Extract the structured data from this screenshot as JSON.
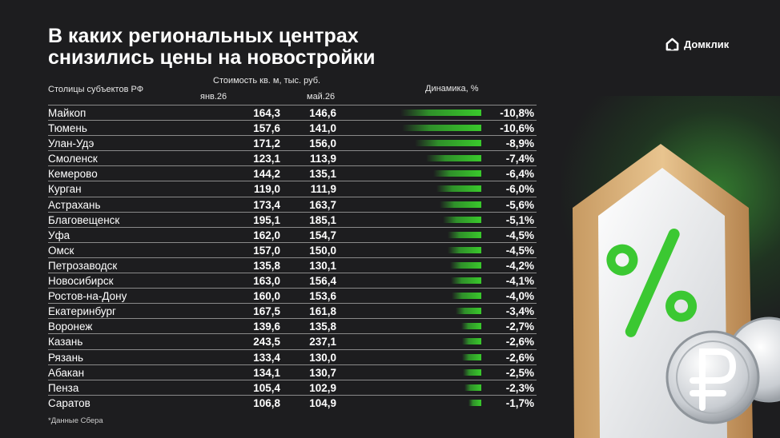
{
  "title": {
    "line1": "В каких региональных центрах",
    "line2": "снизились цены на новостройки"
  },
  "brand": {
    "name": "Домклик",
    "icon": "house-logo-icon",
    "accent": "#3bc832"
  },
  "table_headers": {
    "city": "Столицы субъектов РФ",
    "cost": "Стоимость кв. м, тыс. руб.",
    "jan": "янв.26",
    "may": "май.26",
    "dynamics": "Динамика, %"
  },
  "footnote": "*Данные Сбера",
  "chart_data": {
    "type": "table",
    "columns": [
      "Столицы субъектов РФ",
      "янв.26",
      "май.26",
      "Динамика, %"
    ],
    "rows": [
      {
        "city": "Майкоп",
        "jan": "164,3",
        "may": "146,6",
        "change_label": "-10,8%",
        "change": -10.8
      },
      {
        "city": "Тюмень",
        "jan": "157,6",
        "may": "141,0",
        "change_label": "-10,6%",
        "change": -10.6
      },
      {
        "city": "Улан-Удэ",
        "jan": "171,2",
        "may": "156,0",
        "change_label": "-8,9%",
        "change": -8.9
      },
      {
        "city": "Смоленск",
        "jan": "123,1",
        "may": "113,9",
        "change_label": "-7,4%",
        "change": -7.4
      },
      {
        "city": "Кемерово",
        "jan": "144,2",
        "may": "135,1",
        "change_label": "-6,4%",
        "change": -6.4
      },
      {
        "city": "Курган",
        "jan": "119,0",
        "may": "111,9",
        "change_label": "-6,0%",
        "change": -6.0
      },
      {
        "city": "Астрахань",
        "jan": "173,4",
        "may": "163,7",
        "change_label": "-5,6%",
        "change": -5.6
      },
      {
        "city": "Благовещенск",
        "jan": "195,1",
        "may": "185,1",
        "change_label": "-5,1%",
        "change": -5.1
      },
      {
        "city": "Уфа",
        "jan": "162,0",
        "may": "154,7",
        "change_label": "-4,5%",
        "change": -4.5
      },
      {
        "city": "Омск",
        "jan": "157,0",
        "may": "150,0",
        "change_label": "-4,5%",
        "change": -4.5
      },
      {
        "city": "Петрозаводск",
        "jan": "135,8",
        "may": "130,1",
        "change_label": "-4,2%",
        "change": -4.2
      },
      {
        "city": "Новосибирск",
        "jan": "163,0",
        "may": "156,4",
        "change_label": "-4,1%",
        "change": -4.1
      },
      {
        "city": "Ростов-на-Дону",
        "jan": "160,0",
        "may": "153,6",
        "change_label": "-4,0%",
        "change": -4.0
      },
      {
        "city": "Екатеринбург",
        "jan": "167,5",
        "may": "161,8",
        "change_label": "-3,4%",
        "change": -3.4
      },
      {
        "city": "Воронеж",
        "jan": "139,6",
        "may": "135,8",
        "change_label": "-2,7%",
        "change": -2.7
      },
      {
        "city": "Казань",
        "jan": "243,5",
        "may": "237,1",
        "change_label": "-2,6%",
        "change": -2.6
      },
      {
        "city": "Рязань",
        "jan": "133,4",
        "may": "130,0",
        "change_label": "-2,6%",
        "change": -2.6
      },
      {
        "city": "Абакан",
        "jan": "134,1",
        "may": "130,7",
        "change_label": "-2,5%",
        "change": -2.5
      },
      {
        "city": "Пенза",
        "jan": "105,4",
        "may": "102,9",
        "change_label": "-2,3%",
        "change": -2.3
      },
      {
        "city": "Саратов",
        "jan": "106,8",
        "may": "104,9",
        "change_label": "-1,7%",
        "change": -1.7
      }
    ],
    "bar_max_abs": 10.8,
    "bar_color": "#39c92b"
  }
}
